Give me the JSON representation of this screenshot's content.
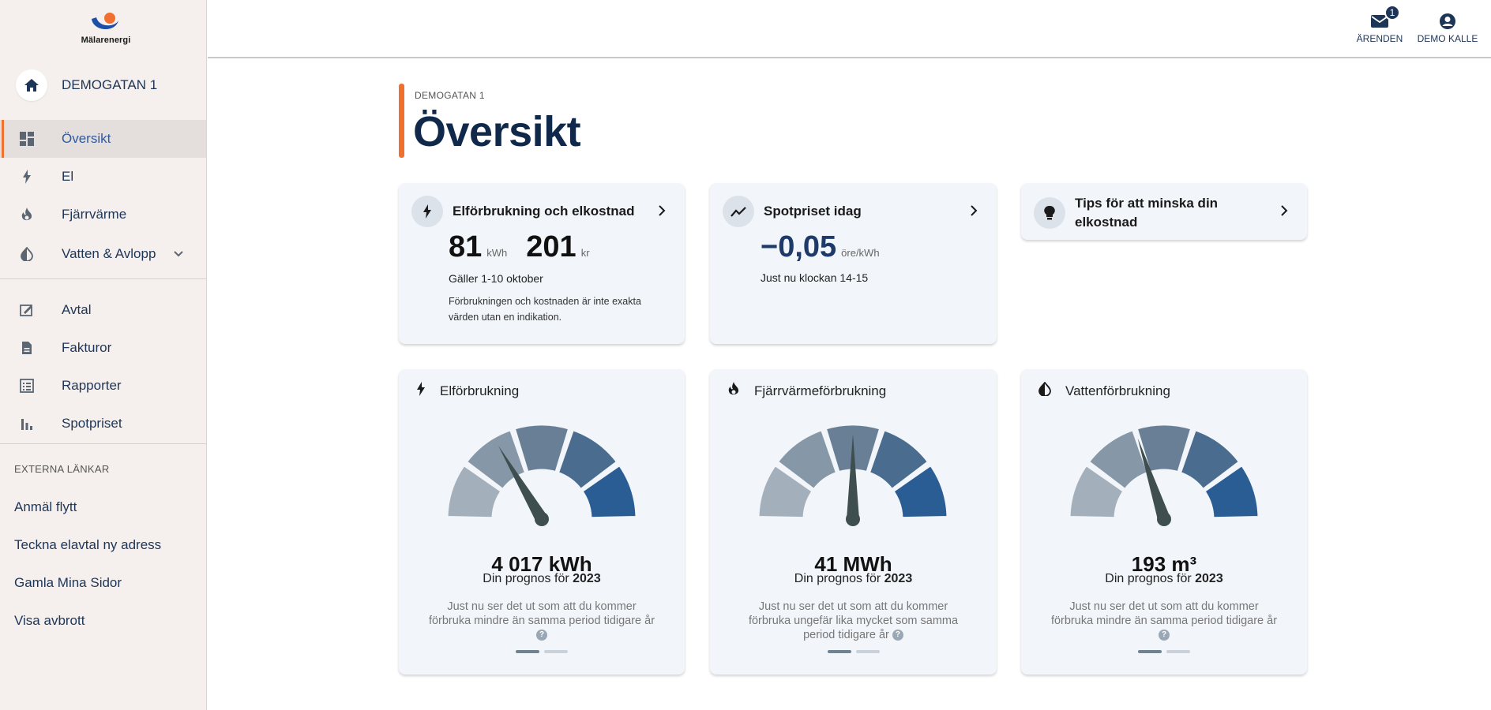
{
  "brand": {
    "name": "Mälarenergi"
  },
  "sidebar": {
    "property_label": "DEMOGATAN 1",
    "nav_group1": [
      {
        "label": "Översikt",
        "icon": "dashboard-icon",
        "active": true
      },
      {
        "label": "El",
        "icon": "bolt-icon"
      },
      {
        "label": "Fjärrvärme",
        "icon": "flame-icon"
      },
      {
        "label": "Vatten & Avlopp",
        "icon": "water-drop-icon",
        "expandable": true
      }
    ],
    "nav_group2": [
      {
        "label": "Avtal",
        "icon": "contract-icon"
      },
      {
        "label": "Fakturor",
        "icon": "invoice-icon"
      },
      {
        "label": "Rapporter",
        "icon": "report-icon"
      },
      {
        "label": "Spotpriset",
        "icon": "bar-chart-icon"
      }
    ],
    "external_title": "EXTERNA LÄNKAR",
    "external_links": [
      {
        "label": "Anmäl flytt"
      },
      {
        "label": "Teckna elavtal ny adress"
      },
      {
        "label": "Gamla Mina Sidor"
      },
      {
        "label": "Visa avbrott"
      }
    ]
  },
  "topbar": {
    "errands_label": "ÄRENDEN",
    "errands_badge": "1",
    "user_label": "DEMO KALLE"
  },
  "page": {
    "breadcrumb": "DEMOGATAN 1",
    "title": "Översikt"
  },
  "cards": {
    "consumption": {
      "title": "Elförbrukning och elkostnad",
      "kwh_value": "81",
      "kwh_unit": "kWh",
      "cost_value": "201",
      "cost_unit": "kr",
      "period": "Gäller 1-10 oktober",
      "disclaimer_line1": "Förbrukningen och kostnaden är inte exakta",
      "disclaimer_line2": "värden utan en indikation."
    },
    "spot": {
      "title": "Spotpriset idag",
      "value": "−0,05",
      "unit": "öre/kWh",
      "note": "Just nu klockan 14-15"
    },
    "tips": {
      "title_line1": "Tips för att minska din",
      "title_line2": "elkostnad"
    }
  },
  "gauges": [
    {
      "title": "Elförbrukning",
      "icon": "bolt-icon",
      "value": "4 017 kWh",
      "prognosis_prefix": "Din prognos för",
      "year": "2023",
      "desc_line1": "Just nu ser det ut som att du kommer",
      "desc_line2": "förbruka mindre än samma period tidigare år",
      "desc_line3": "",
      "needle_fraction": 0.33
    },
    {
      "title": "Fjärrvärmeförbrukning",
      "icon": "flame-icon",
      "value": "41 MWh",
      "prognosis_prefix": "Din prognos för",
      "year": "2023",
      "desc_line1": "Just nu ser det ut som att du kommer",
      "desc_line2": "förbruka ungefär lika mycket som samma",
      "desc_line3": "period tidigare år",
      "needle_fraction": 0.5
    },
    {
      "title": "Vattenförbrukning",
      "icon": "water-drop-icon",
      "value": "193 m³",
      "prognosis_prefix": "Din prognos för",
      "year": "2023",
      "desc_line1": "Just nu ser det ut som att du kommer",
      "desc_line2": "förbruka mindre än samma period tidigare år",
      "desc_line3": "",
      "needle_fraction": 0.4
    }
  ],
  "colors": {
    "accent": "#f07030",
    "navy": "#10284a",
    "gauge_segments": [
      "#a3b0bc",
      "#8698a8",
      "#687f95",
      "#4a6c8e",
      "#2a5d94"
    ],
    "needle": "#3f4f4f"
  }
}
